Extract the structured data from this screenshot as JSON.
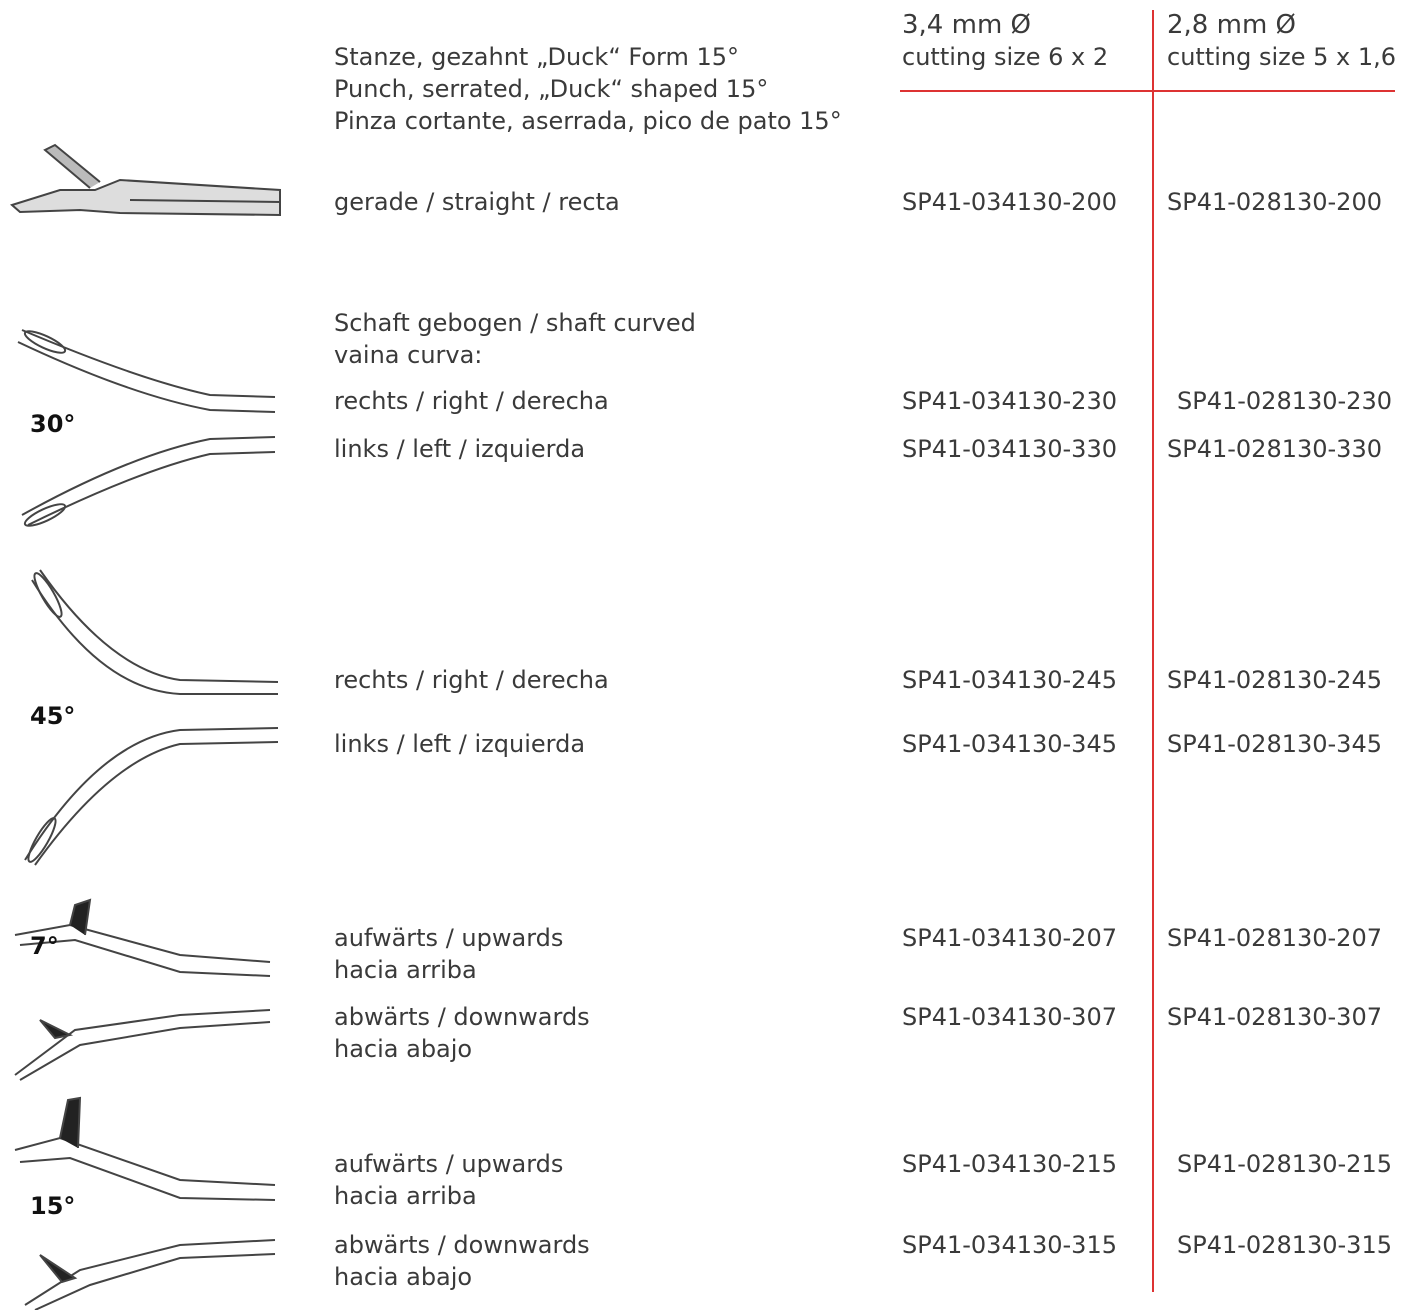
{
  "header": {
    "title": [
      "Stanze, gezahnt „Duck“ Form 15°",
      "Punch, serrated, „Duck“ shaped 15°",
      "Pinza cortante, aserrada, pico de pato 15°"
    ],
    "columns": [
      {
        "size": "3,4 mm Ø",
        "cutting": "cutting size 6 x 2"
      },
      {
        "size": "2,8 mm Ø",
        "cutting": "cutting size 5 x 1,6"
      }
    ]
  },
  "straight": {
    "label": "gerade / straight / recta",
    "codes": [
      "SP41-034130-200",
      "SP41-028130-200"
    ]
  },
  "curved_heading": [
    "Schaft gebogen / shaft curved",
    "vaina curva:"
  ],
  "angles": [
    "30°",
    "45°",
    "7°",
    "15°"
  ],
  "rows": [
    {
      "label": [
        "rechts / right / derecha"
      ],
      "codes": [
        "SP41-034130-230",
        "SP41-028130-230"
      ]
    },
    {
      "label": [
        "links / left / izquierda"
      ],
      "codes": [
        "SP41-034130-330",
        "SP41-028130-330"
      ]
    },
    {
      "label": [
        "rechts / right / derecha"
      ],
      "codes": [
        "SP41-034130-245",
        "SP41-028130-245"
      ]
    },
    {
      "label": [
        "links / left / izquierda"
      ],
      "codes": [
        "SP41-034130-345",
        "SP41-028130-345"
      ]
    },
    {
      "label": [
        "aufwärts / upwards",
        "hacia arriba"
      ],
      "codes": [
        "SP41-034130-207",
        "SP41-028130-207"
      ]
    },
    {
      "label": [
        "abwärts / downwards",
        "hacia abajo"
      ],
      "codes": [
        "SP41-034130-307",
        "SP41-028130-307"
      ]
    },
    {
      "label": [
        "aufwärts / upwards",
        "hacia arriba"
      ],
      "codes": [
        "SP41-034130-215",
        "SP41-028130-215"
      ]
    },
    {
      "label": [
        "abwärts / downwards",
        "hacia abajo"
      ],
      "codes": [
        "SP41-034130-315",
        "SP41-028130-315"
      ]
    }
  ]
}
